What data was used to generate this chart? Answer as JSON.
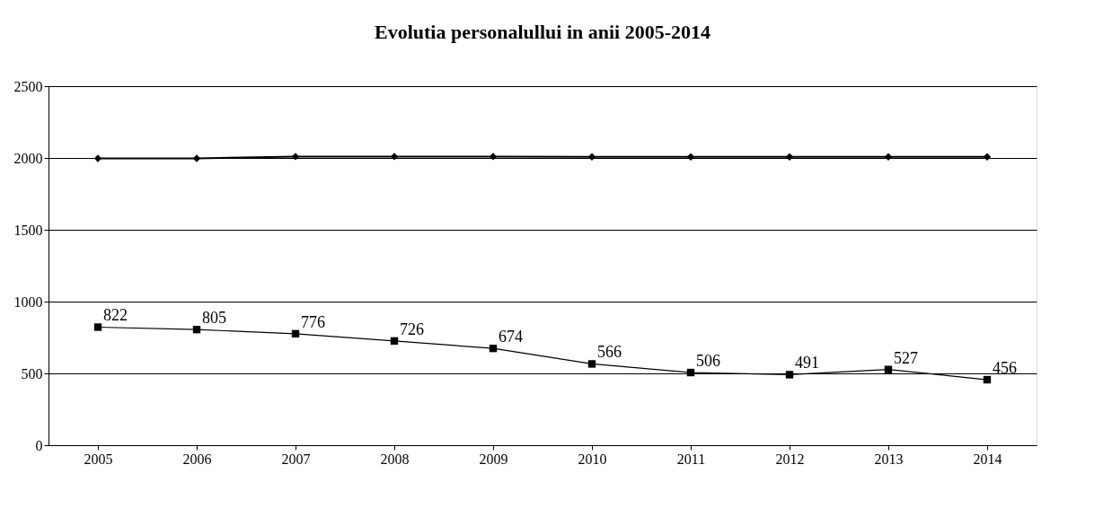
{
  "chart_data": {
    "type": "line",
    "title": "Evolutia personalullui in anii 2005-2014",
    "categories": [
      "2005",
      "2006",
      "2007",
      "2008",
      "2009",
      "2010",
      "2011",
      "2012",
      "2013",
      "2014"
    ],
    "series": [
      {
        "color": "#000000",
        "marker": "diamond",
        "values": [
          1997,
          1997,
          2010,
          2010,
          2010,
          2008,
          2008,
          2008,
          2008,
          2008
        ]
      },
      {
        "color": "#000000",
        "marker": "square",
        "values": [
          822,
          805,
          776,
          726,
          674,
          566,
          506,
          491,
          527,
          456
        ],
        "value_labels": [
          "822",
          "805",
          "776",
          "726",
          "674",
          "566",
          "506",
          "491",
          "527",
          "456"
        ]
      }
    ],
    "ylim": [
      0,
      2500
    ],
    "yticks": [
      0,
      500,
      1000,
      1500,
      2000,
      2500
    ],
    "grid": "y"
  }
}
